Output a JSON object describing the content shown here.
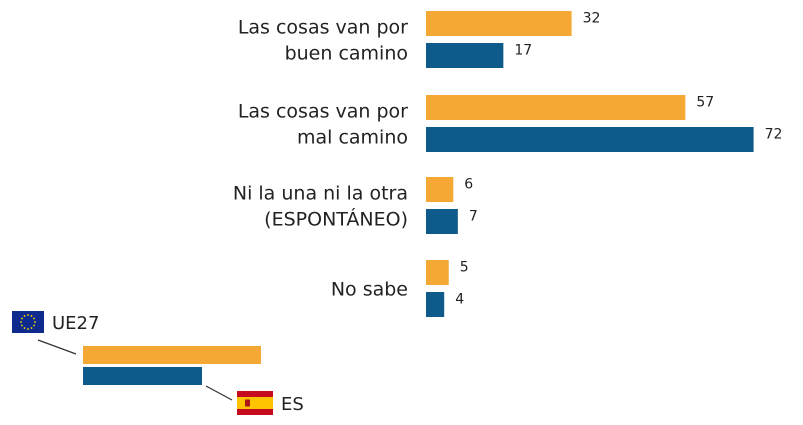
{
  "chart_data": {
    "type": "bar",
    "orientation": "horizontal",
    "categories": [
      [
        "Las cosas van por",
        "buen camino"
      ],
      [
        "Las cosas van por",
        "mal camino"
      ],
      [
        "Ni la una ni la otra",
        "(ESPONTÁNEO)"
      ],
      [
        "No sabe"
      ]
    ],
    "series": [
      {
        "name": "UE27",
        "color": "#f5a833",
        "values": [
          32,
          57,
          6,
          5
        ]
      },
      {
        "name": "ES",
        "color": "#0e5a8a",
        "values": [
          17,
          72,
          7,
          4
        ]
      }
    ],
    "xlim": [
      0,
      72
    ],
    "grid": false,
    "legend": {
      "placement": "bottom-left",
      "items": [
        {
          "label": "UE27",
          "icon": "eu-flag-icon"
        },
        {
          "label": "ES",
          "icon": "spain-flag-icon"
        }
      ]
    }
  }
}
